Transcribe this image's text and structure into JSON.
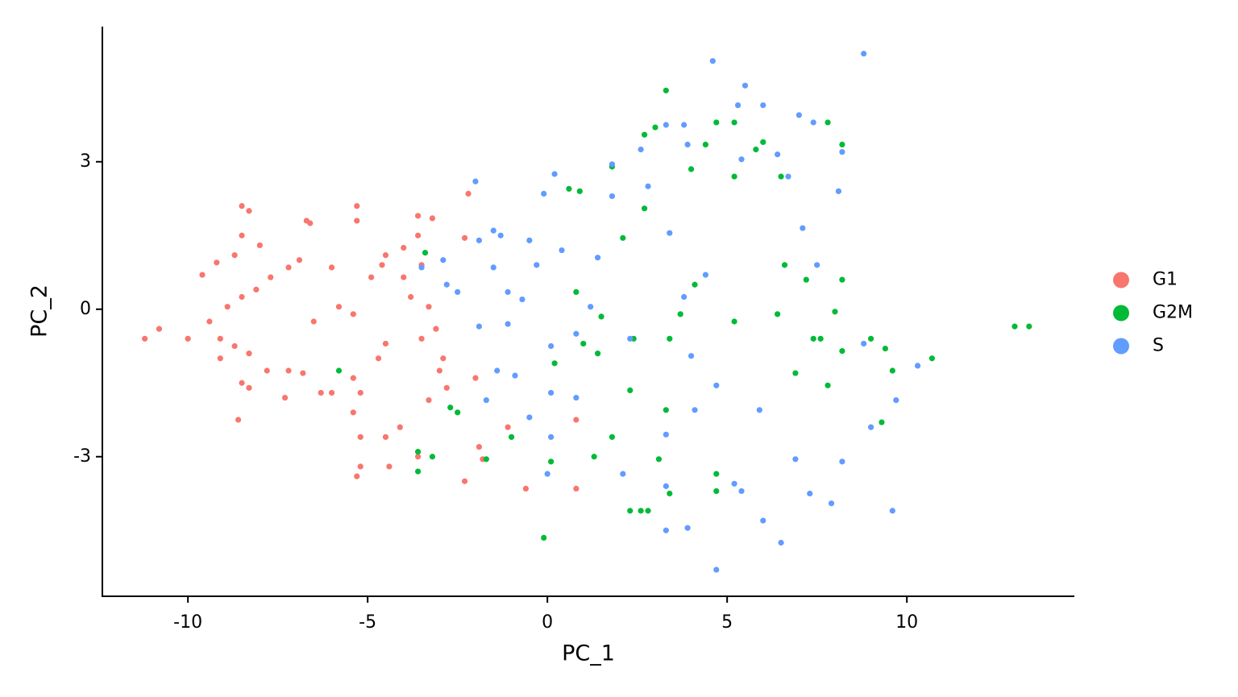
{
  "chart_data": {
    "type": "scatter",
    "x_label": "PC_1",
    "y_label": "PC_2",
    "xlim": [
      -12.38,
      14.66
    ],
    "ylim": [
      -5.84,
      5.75
    ],
    "xticks": [
      -10,
      -5,
      0,
      5,
      10
    ],
    "yticks": [
      -3,
      0,
      3
    ],
    "grid": false,
    "legend": "right",
    "series": [
      {
        "name": "G1",
        "color": "#F8766D",
        "x": [
          -11.2,
          -10.8,
          -10,
          -9.6,
          -9.2,
          -8.5,
          -8.3,
          -8.5,
          -8.0,
          -8.7,
          -6.7,
          -6.6,
          -5.3,
          -5.3,
          -6.9,
          -7.2,
          -6.0,
          -7.7,
          -8.1,
          -8.5,
          -8.9,
          -9.4,
          -9.1,
          -8.7,
          -8.3,
          -9.1,
          -7.8,
          -7.2,
          -6.8,
          -8.5,
          -8.3,
          -7.3,
          -6.3,
          -6.0,
          -8.6,
          -6.5,
          -5.8,
          -5.4,
          -4.9,
          -4.6,
          -4.0,
          -3.6,
          -3.2,
          -3.6,
          -4.0,
          -4.5,
          -3.5,
          -3.8,
          -3.3,
          -3.1,
          -3.5,
          -4.5,
          -4.7,
          -5.4,
          -5.2,
          -5.4,
          -5.2,
          -4.5,
          -4.1,
          -3.3,
          -3.0,
          -2.9,
          -2.8,
          -5.2,
          -4.4,
          -5.3,
          -3.6,
          -2.3,
          -1.9,
          -1.8,
          -2.0,
          -1.1,
          -2.3,
          -2.2,
          -0.6,
          0.8,
          0.8
        ],
        "values": [
          -0.6,
          -0.4,
          -0.6,
          0.7,
          0.95,
          2.1,
          2.0,
          1.5,
          1.3,
          1.1,
          1.8,
          1.75,
          2.1,
          1.8,
          1.0,
          0.85,
          0.85,
          0.65,
          0.4,
          0.25,
          0.05,
          -0.25,
          -0.6,
          -0.75,
          -0.9,
          -1.0,
          -1.25,
          -1.25,
          -1.3,
          -1.5,
          -1.6,
          -1.8,
          -1.7,
          -1.7,
          -2.25,
          -0.25,
          0.05,
          -0.1,
          0.65,
          0.9,
          0.65,
          1.9,
          1.85,
          1.5,
          1.25,
          1.1,
          0.9,
          0.25,
          0.05,
          -0.4,
          -0.6,
          -0.7,
          -1.0,
          -1.4,
          -1.7,
          -2.1,
          -2.6,
          -2.6,
          -2.4,
          -1.85,
          -1.25,
          -1.0,
          -1.6,
          -3.2,
          -3.2,
          -3.4,
          -3.0,
          -3.5,
          -2.8,
          -3.05,
          -1.4,
          -2.4,
          1.45,
          2.35,
          -3.65,
          -3.65,
          -2.25
        ]
      },
      {
        "name": "G2M",
        "color": "#00BA38",
        "x": [
          -3.4,
          -5.8,
          -3.6,
          -3.2,
          -3.6,
          -2.7,
          -2.5,
          -1.7,
          -1.0,
          0.1,
          -0.1,
          0.2,
          0.6,
          0.9,
          0.8,
          1.0,
          1.5,
          1.4,
          1.3,
          1.8,
          1.8,
          2.1,
          2.3,
          2.3,
          2.4,
          2.7,
          2.7,
          3.0,
          3.3,
          3.1,
          2.6,
          2.8,
          3.4,
          3.3,
          3.4,
          3.7,
          4.0,
          4.1,
          4.4,
          4.7,
          5.2,
          4.7,
          4.7,
          5.2,
          5.2,
          5.8,
          6.0,
          6.5,
          6.6,
          6.4,
          6.9,
          7.2,
          7.8,
          8.2,
          8.2,
          8.0,
          8.2,
          9.0,
          9.4,
          9.6,
          10.7,
          9.3,
          13.0,
          13.4,
          7.8,
          7.6,
          7.4
        ],
        "values": [
          1.15,
          -1.25,
          -2.9,
          -3.0,
          -3.3,
          -2.0,
          -2.1,
          -3.05,
          -2.6,
          -3.1,
          -4.65,
          -1.1,
          2.45,
          2.4,
          0.35,
          -0.7,
          -0.15,
          -0.9,
          -3.0,
          -2.6,
          2.9,
          1.45,
          -1.65,
          -4.1,
          -0.6,
          2.05,
          3.55,
          3.7,
          4.45,
          -3.05,
          -4.1,
          -4.1,
          -3.75,
          -2.05,
          -0.6,
          -0.1,
          2.85,
          0.5,
          3.35,
          3.8,
          3.8,
          -3.7,
          -3.35,
          -0.25,
          2.7,
          3.25,
          3.4,
          2.7,
          0.9,
          -0.1,
          -1.3,
          0.6,
          3.8,
          3.35,
          0.6,
          -0.05,
          -0.85,
          -0.6,
          -0.8,
          -1.25,
          -1.0,
          -2.3,
          -0.35,
          -0.35,
          -1.55,
          -0.6,
          -0.6
        ]
      },
      {
        "name": "S",
        "color": "#619CFF",
        "x": [
          -3.5,
          -2.9,
          -2.8,
          -2.5,
          -2.0,
          -1.9,
          -1.5,
          -1.3,
          -1.5,
          -1.1,
          -1.1,
          -1.9,
          -1.7,
          -1.4,
          -0.9,
          -0.7,
          -0.5,
          -0.3,
          -0.1,
          0.2,
          0.4,
          0.1,
          0.1,
          0.0,
          -0.5,
          0.1,
          0.8,
          0.8,
          1.2,
          1.4,
          1.8,
          1.8,
          2.1,
          2.6,
          2.8,
          3.3,
          3.8,
          3.9,
          3.3,
          3.3,
          3.3,
          3.9,
          4.6,
          4.7,
          5.3,
          5.5,
          6.0,
          5.4,
          6.4,
          7.0,
          7.4,
          8.8,
          8.2,
          8.1,
          6.5,
          6.0,
          5.4,
          5.2,
          5.9,
          6.9,
          7.3,
          7.9,
          8.2,
          9.0,
          9.6,
          9.7,
          10.3,
          8.8,
          7.5,
          7.1,
          6.7,
          4.0,
          4.7,
          4.1,
          3.4,
          4.4,
          2.3,
          3.8
        ],
        "values": [
          0.85,
          1.0,
          0.5,
          0.35,
          2.6,
          1.4,
          1.6,
          1.5,
          0.85,
          0.35,
          -0.3,
          -0.35,
          -1.85,
          -1.25,
          -1.35,
          0.2,
          1.4,
          0.9,
          2.35,
          2.75,
          1.2,
          -0.75,
          -2.6,
          -3.35,
          -2.2,
          -1.7,
          -1.8,
          -0.5,
          0.05,
          1.05,
          2.3,
          2.95,
          -3.35,
          3.25,
          2.5,
          3.75,
          3.75,
          3.35,
          -2.55,
          -3.6,
          -4.5,
          -4.45,
          5.05,
          -5.3,
          4.15,
          4.55,
          4.15,
          3.05,
          3.15,
          3.95,
          3.8,
          5.2,
          3.2,
          2.4,
          -4.75,
          -4.3,
          -3.7,
          -3.55,
          -2.05,
          -3.05,
          -3.75,
          -3.95,
          -3.1,
          -2.4,
          -4.1,
          -1.85,
          -1.15,
          -0.7,
          0.9,
          1.65,
          2.7,
          -0.95,
          -1.55,
          -2.05,
          1.55,
          0.7,
          -0.6,
          0.25
        ]
      }
    ]
  }
}
